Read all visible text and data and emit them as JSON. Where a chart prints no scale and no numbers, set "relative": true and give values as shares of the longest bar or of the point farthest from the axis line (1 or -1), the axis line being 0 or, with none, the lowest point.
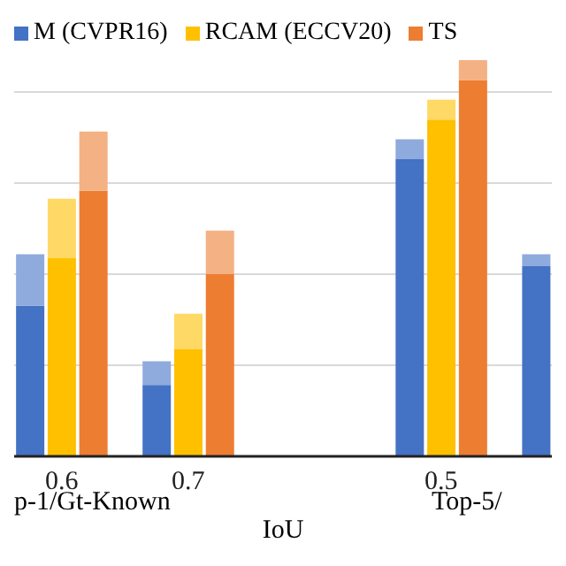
{
  "chart_data": {
    "type": "bar",
    "xlabel": "IoU",
    "categories": [
      null,
      "0.6",
      null,
      null,
      null,
      "0.7",
      null,
      null,
      null,
      null,
      null,
      null,
      null,
      "0.5",
      null,
      null,
      null
    ],
    "relative": true,
    "stacked": true,
    "grid": "y",
    "legend": "top",
    "series": [
      {
        "name": "M (CVPR16)",
        "color": "#4472c4",
        "values": [
          0.38,
          null,
          null,
          null,
          0.18,
          null,
          null,
          null,
          null,
          null,
          null,
          null,
          0.75,
          null,
          null,
          null,
          0.48
        ]
      },
      {
        "color": "#8faadc",
        "values": [
          0.13,
          null,
          null,
          null,
          0.06,
          null,
          null,
          null,
          null,
          null,
          null,
          null,
          0.05,
          null,
          null,
          null,
          0.03
        ]
      },
      {
        "name": "RCAM (ECCV20)",
        "color": "#ffc000",
        "values": [
          null,
          0.5,
          null,
          null,
          null,
          0.27,
          null,
          null,
          null,
          null,
          null,
          null,
          null,
          0.85,
          null,
          null,
          null
        ]
      },
      {
        "color": "#ffd966",
        "values": [
          null,
          0.15,
          null,
          null,
          null,
          0.09,
          null,
          null,
          null,
          null,
          null,
          null,
          null,
          0.05,
          null,
          null,
          null
        ]
      },
      {
        "name": "TS",
        "color": "#ed7d31",
        "values": [
          null,
          null,
          0.67,
          null,
          null,
          null,
          0.46,
          null,
          null,
          null,
          null,
          null,
          null,
          null,
          0.95,
          null,
          null
        ]
      },
      {
        "color": "#f4b183",
        "values": [
          null,
          null,
          0.15,
          null,
          null,
          null,
          0.11,
          null,
          null,
          null,
          null,
          null,
          null,
          null,
          0.05,
          null,
          null
        ]
      }
    ],
    "annotations": [
      "p-1/Gt-Known",
      "Top-5/"
    ]
  }
}
